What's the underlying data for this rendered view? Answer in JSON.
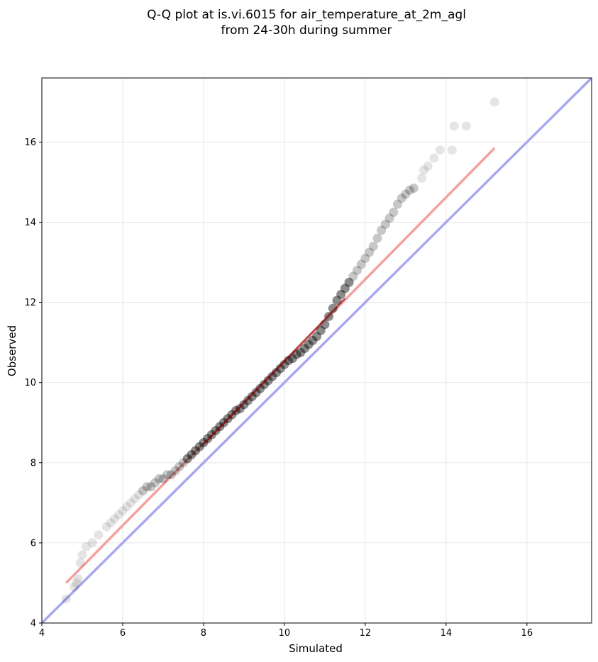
{
  "chart_data": {
    "type": "scatter",
    "title": "Q-Q plot at is.vi.6015 for air_temperature_at_2m_agl",
    "subtitle": "from 24-30h during summer",
    "xlabel": "Simulated",
    "ylabel": "Observed",
    "xlim": [
      4,
      17.6
    ],
    "ylim": [
      4,
      17.6
    ],
    "xticks": [
      "4",
      "6",
      "8",
      "10",
      "12",
      "14",
      "16"
    ],
    "yticks": [
      "4",
      "6",
      "8",
      "10",
      "12",
      "14",
      "16"
    ],
    "grid": true,
    "colors": {
      "points": "#000000",
      "fit_line": "#f4a0a0",
      "fit_line_dark": "#8b0000",
      "identity_line": "#a8a8f0"
    },
    "identity_line": {
      "x": [
        4,
        17.6
      ],
      "y": [
        4,
        17.6
      ]
    },
    "fit_line": {
      "x": [
        4.6,
        15.2
      ],
      "y": [
        5.0,
        15.85
      ]
    },
    "fit_line_dark_segment": {
      "x": [
        8.0,
        11.5
      ],
      "y": [
        8.45,
        12.1
      ]
    },
    "points": {
      "x": [
        4.6,
        4.8,
        4.85,
        4.9,
        4.95,
        5.0,
        5.1,
        5.25,
        5.4,
        5.6,
        5.7,
        5.8,
        5.9,
        6.0,
        6.1,
        6.2,
        6.3,
        6.4,
        6.5,
        6.6,
        6.7,
        6.8,
        6.9,
        7.0,
        7.1,
        7.2,
        7.3,
        7.4,
        7.5,
        7.6,
        7.7,
        7.8,
        7.9,
        8.0,
        8.1,
        8.2,
        8.3,
        8.4,
        8.5,
        8.6,
        8.7,
        8.8,
        8.9,
        9.0,
        9.1,
        9.2,
        9.3,
        9.4,
        9.5,
        9.6,
        9.7,
        9.8,
        9.9,
        10.0,
        10.1,
        10.2,
        10.3,
        10.4,
        10.5,
        10.6,
        10.7,
        10.8,
        10.9,
        11.0,
        11.1,
        11.2,
        11.3,
        11.4,
        11.5,
        11.6,
        11.7,
        11.8,
        11.9,
        12.0,
        12.1,
        12.2,
        12.3,
        12.4,
        12.5,
        12.6,
        12.7,
        12.8,
        12.9,
        13.0,
        13.1,
        13.2,
        13.4,
        13.45,
        13.55,
        13.7,
        13.85,
        14.15,
        14.2,
        14.5,
        15.2
      ],
      "y": [
        4.6,
        4.9,
        5.0,
        5.1,
        5.5,
        5.7,
        5.9,
        6.0,
        6.2,
        6.4,
        6.5,
        6.6,
        6.7,
        6.8,
        6.9,
        7.0,
        7.1,
        7.2,
        7.3,
        7.4,
        7.4,
        7.5,
        7.6,
        7.6,
        7.7,
        7.7,
        7.8,
        7.9,
        8.0,
        8.1,
        8.2,
        8.3,
        8.4,
        8.5,
        8.6,
        8.7,
        8.8,
        8.9,
        9.0,
        9.1,
        9.2,
        9.3,
        9.35,
        9.45,
        9.55,
        9.65,
        9.75,
        9.85,
        9.95,
        10.05,
        10.15,
        10.25,
        10.35,
        10.45,
        10.55,
        10.6,
        10.7,
        10.75,
        10.85,
        10.95,
        11.05,
        11.15,
        11.3,
        11.45,
        11.65,
        11.85,
        12.05,
        12.2,
        12.35,
        12.5,
        12.65,
        12.8,
        12.95,
        13.1,
        13.25,
        13.4,
        13.6,
        13.8,
        13.95,
        14.1,
        14.25,
        14.45,
        14.6,
        14.7,
        14.8,
        14.85,
        15.1,
        15.3,
        15.4,
        15.6,
        15.8,
        15.8,
        16.4,
        16.4,
        17.0
      ]
    }
  }
}
